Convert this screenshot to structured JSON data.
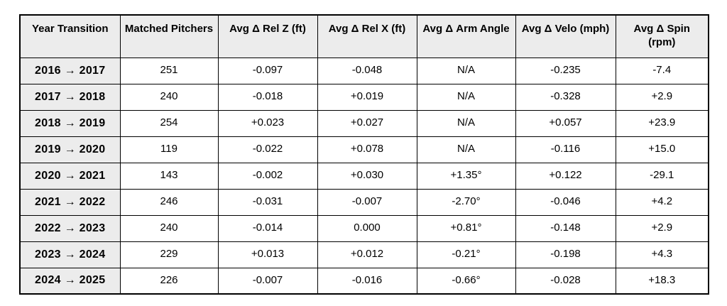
{
  "table": {
    "name": "pitcher-year-transition-deltas",
    "columns": [
      {
        "label": "Year Transition"
      },
      {
        "label": "Matched Pitchers"
      },
      {
        "label": "Avg Δ Rel Z (ft)"
      },
      {
        "label": "Avg Δ Rel X (ft)"
      },
      {
        "label": "Avg Δ Arm Angle"
      },
      {
        "label": "Avg Δ Velo (mph)"
      },
      {
        "label": "Avg Δ Spin (rpm)"
      }
    ],
    "rows": [
      [
        "2016 → 2017",
        "251",
        "-0.097",
        "-0.048",
        "N/A",
        "-0.235",
        "-7.4"
      ],
      [
        "2017 → 2018",
        "240",
        "-0.018",
        "+0.019",
        "N/A",
        "-0.328",
        "+2.9"
      ],
      [
        "2018 → 2019",
        "254",
        "+0.023",
        "+0.027",
        "N/A",
        "+0.057",
        "+23.9"
      ],
      [
        "2019 → 2020",
        "119",
        "-0.022",
        "+0.078",
        "N/A",
        "-0.116",
        "+15.0"
      ],
      [
        "2020 → 2021",
        "143",
        "-0.002",
        "+0.030",
        "+1.35°",
        "+0.122",
        "-29.1"
      ],
      [
        "2021 → 2022",
        "246",
        "-0.031",
        "-0.007",
        "-2.70°",
        "-0.046",
        "+4.2"
      ],
      [
        "2022 → 2023",
        "240",
        "-0.014",
        "0.000",
        "+0.81°",
        "-0.148",
        "+2.9"
      ],
      [
        "2023 → 2024",
        "229",
        "+0.013",
        "+0.012",
        "-0.21°",
        "-0.198",
        "+4.3"
      ],
      [
        "2024 → 2025",
        "226",
        "-0.007",
        "-0.016",
        "-0.66°",
        "-0.028",
        "+18.3"
      ]
    ]
  }
}
